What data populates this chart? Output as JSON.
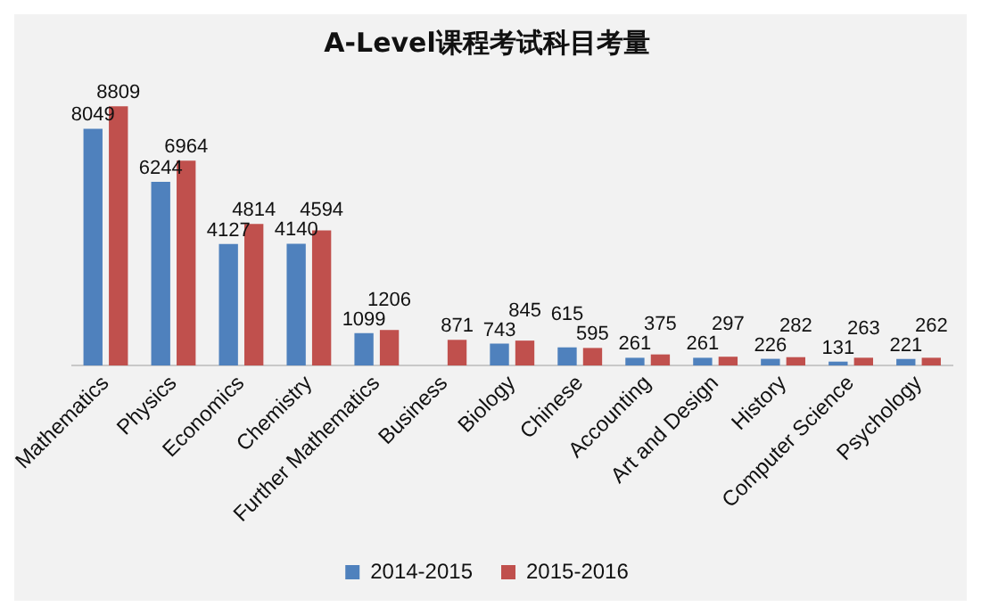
{
  "chart_data": {
    "type": "bar",
    "title": "A-Level课程考试科目考量",
    "categories": [
      "Mathematics",
      "Physics",
      "Economics",
      "Chemistry",
      "Further Mathematics",
      "Business",
      "Biology",
      "Chinese",
      "Accounting",
      "Art and Design",
      "History",
      "Computer Science",
      "Psychology"
    ],
    "series": [
      {
        "name": "2014-2015",
        "color": "#4f81bd",
        "values": [
          8049,
          6244,
          4127,
          4140,
          1099,
          null,
          743,
          615,
          261,
          261,
          226,
          131,
          221
        ]
      },
      {
        "name": "2015-2016",
        "color": "#c0504d",
        "values": [
          8809,
          6964,
          4814,
          4594,
          1206,
          871,
          845,
          595,
          375,
          297,
          282,
          263,
          262
        ]
      }
    ],
    "data_labels": true,
    "grid": false,
    "legend": "bottom"
  }
}
